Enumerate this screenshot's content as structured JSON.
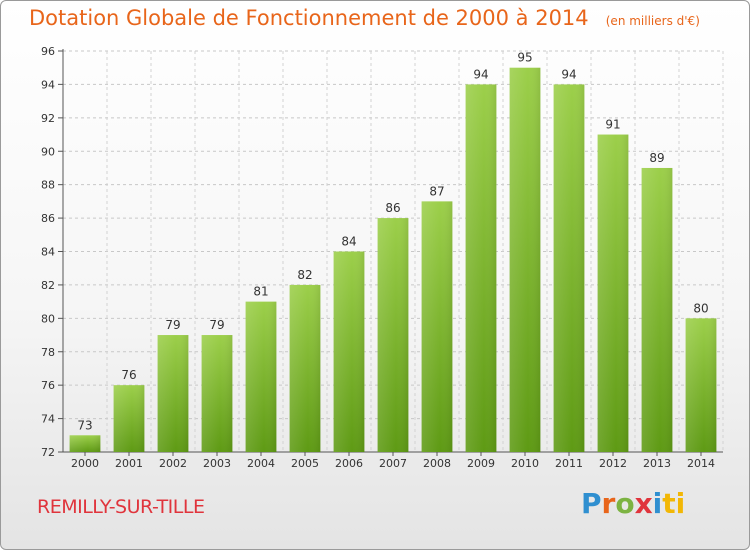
{
  "chart_data": {
    "type": "bar",
    "title": "Dotation Globale de Fonctionnement de 2000 à 2014",
    "subtitle": "(en milliers d'€)",
    "categories": [
      "2000",
      "2001",
      "2002",
      "2003",
      "2004",
      "2005",
      "2006",
      "2007",
      "2008",
      "2009",
      "2010",
      "2011",
      "2012",
      "2013",
      "2014"
    ],
    "values": [
      73,
      76,
      79,
      79,
      81,
      82,
      84,
      86,
      87,
      94,
      95,
      94,
      91,
      89,
      80
    ],
    "ylim": [
      72,
      96
    ],
    "yticks": [
      72,
      74,
      76,
      78,
      80,
      82,
      84,
      86,
      88,
      90,
      92,
      94,
      96
    ],
    "xlabel": "",
    "ylabel": "",
    "grid": true,
    "bar_color_top": "#9ccf4a",
    "bar_color_bottom": "#5e9a14"
  },
  "footer": {
    "commune": "REMILLY-SUR-TILLE",
    "logo_letters": [
      "P",
      "r",
      "o",
      "x",
      "i",
      "ti"
    ]
  },
  "colors": {
    "title": "#e8651a",
    "commune": "#e0343c"
  }
}
